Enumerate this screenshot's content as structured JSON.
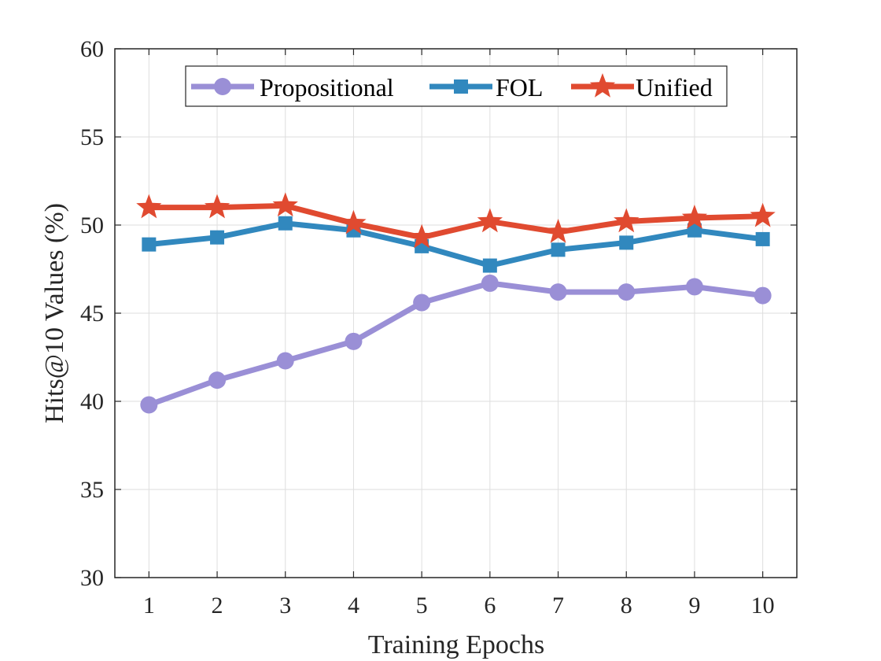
{
  "chart_data": {
    "type": "line",
    "title": "",
    "xlabel": "Training Epochs",
    "ylabel": "Hits@10 Values (%)",
    "x": [
      1,
      2,
      3,
      4,
      5,
      6,
      7,
      8,
      9,
      10
    ],
    "xticks": [
      "1",
      "2",
      "3",
      "4",
      "5",
      "6",
      "7",
      "8",
      "9",
      "10"
    ],
    "yticks": [
      "30",
      "35",
      "40",
      "45",
      "50",
      "55",
      "60"
    ],
    "ylim": [
      30,
      60
    ],
    "xlim": [
      0.5,
      10.5
    ],
    "grid": true,
    "legend": "top-center",
    "series": [
      {
        "name": "Propositional",
        "color": "#9a8fd6",
        "marker": "circle",
        "values": [
          39.8,
          41.2,
          42.3,
          43.4,
          45.6,
          46.7,
          46.2,
          46.2,
          46.5,
          46.0
        ]
      },
      {
        "name": "FOL",
        "color": "#3188be",
        "marker": "square",
        "values": [
          48.9,
          49.3,
          50.1,
          49.7,
          48.8,
          47.7,
          48.6,
          49.0,
          49.7,
          49.2
        ]
      },
      {
        "name": "Unified",
        "color": "#e04a30",
        "marker": "star",
        "values": [
          51.0,
          51.0,
          51.1,
          50.1,
          49.3,
          50.2,
          49.6,
          50.2,
          50.4,
          50.5
        ]
      }
    ]
  }
}
